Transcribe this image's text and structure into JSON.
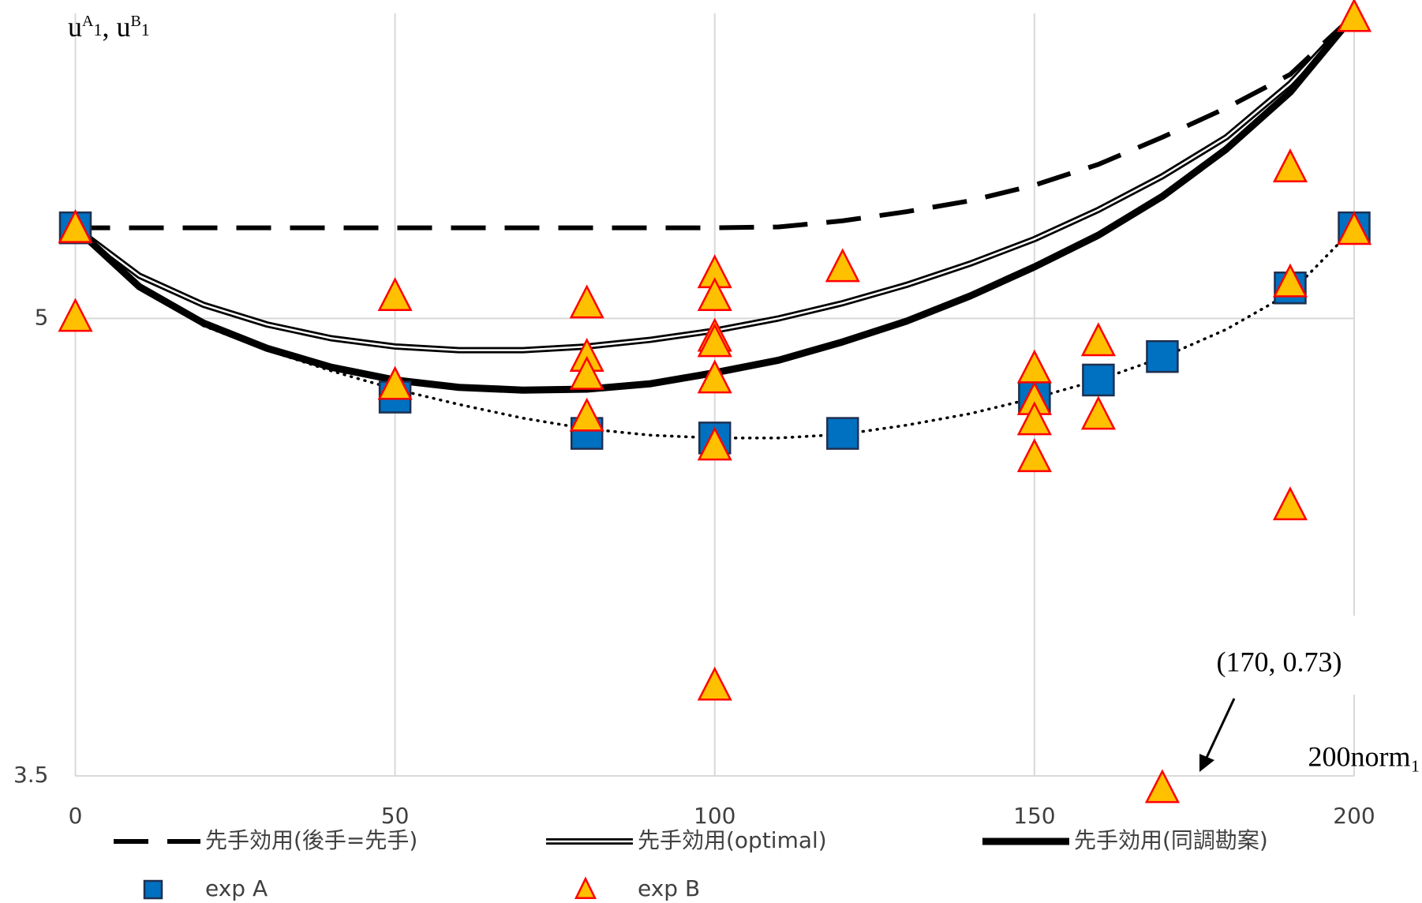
{
  "chart_data": {
    "type": "line",
    "y_label": [
      "u",
      "A",
      "1",
      ",  u",
      "B",
      "1"
    ],
    "x_label": "200norm₁",
    "annotation": "(170, 0.73)",
    "xlim": [
      0,
      200
    ],
    "xticks": [
      0,
      50,
      100,
      150,
      200
    ],
    "ylim": [
      3.5,
      6
    ],
    "yticks": [
      3.5,
      5
    ],
    "grid": true,
    "series": [
      {
        "name": "先手効用(後手=先手)",
        "style": "dashed",
        "color": "#000000",
        "x": [
          0,
          10,
          20,
          30,
          40,
          50,
          60,
          70,
          80,
          90,
          100,
          110,
          120,
          130,
          140,
          150,
          160,
          170,
          180,
          190,
          200
        ],
        "values": [
          5.297,
          5.297,
          5.297,
          5.297,
          5.297,
          5.297,
          5.297,
          5.297,
          5.297,
          5.297,
          5.297,
          5.3,
          5.32,
          5.35,
          5.386,
          5.437,
          5.505,
          5.594,
          5.69,
          5.8,
          5.995
        ]
      },
      {
        "name": "先手効用(optimal)",
        "style": "double",
        "color": "#000000",
        "x": [
          0,
          10,
          20,
          30,
          40,
          50,
          60,
          70,
          80,
          90,
          100,
          110,
          120,
          130,
          140,
          150,
          160,
          170,
          180,
          190,
          200
        ],
        "values": [
          5.297,
          5.14,
          5.045,
          4.98,
          4.935,
          4.908,
          4.896,
          4.896,
          4.908,
          4.93,
          4.96,
          5.0,
          5.05,
          5.11,
          5.18,
          5.26,
          5.356,
          5.466,
          5.594,
          5.77,
          5.995
        ]
      },
      {
        "name": "先手効用(同調勘案)",
        "style": "thick",
        "color": "#000000",
        "x": [
          0,
          10,
          20,
          30,
          40,
          50,
          60,
          70,
          80,
          90,
          100,
          110,
          120,
          130,
          140,
          150,
          160,
          170,
          180,
          190,
          200
        ],
        "values": [
          5.297,
          5.104,
          4.985,
          4.902,
          4.84,
          4.798,
          4.774,
          4.765,
          4.768,
          4.786,
          4.822,
          4.863,
          4.923,
          4.991,
          5.074,
          5.169,
          5.273,
          5.4,
          5.555,
          5.742,
          5.995
        ]
      },
      {
        "name": "exp A",
        "style": "square",
        "color": "#0070c0",
        "x": [
          0,
          50,
          80,
          100,
          120,
          150,
          160,
          170,
          190,
          200
        ],
        "values": [
          5.297,
          4.742,
          4.623,
          4.608,
          4.623,
          4.742,
          4.798,
          4.875,
          5.1,
          5.297
        ]
      },
      {
        "name": "exp B",
        "style": "triangle",
        "color": "#ffc000",
        "x": [
          0,
          0,
          50,
          50,
          80,
          80,
          80,
          80,
          100,
          100,
          100,
          100,
          100,
          100,
          100,
          120,
          150,
          150,
          150,
          150,
          160,
          160,
          170,
          190,
          190,
          190,
          200,
          200
        ],
        "values": [
          5.297,
          5.006,
          5.074,
          4.783,
          5.05,
          4.875,
          4.816,
          4.679,
          5.149,
          5.074,
          4.941,
          4.923,
          4.804,
          4.584,
          3.797,
          5.169,
          4.837,
          4.733,
          4.667,
          4.546,
          4.926,
          4.685,
          3.461,
          5.496,
          5.119,
          4.388,
          5.989,
          5.291
        ]
      },
      {
        "style": "dotted",
        "color": "#000000",
        "x": [
          20,
          30,
          40,
          50,
          60,
          70,
          80,
          90,
          100,
          110,
          120,
          130,
          140,
          150,
          160,
          170,
          180,
          190,
          200
        ],
        "values": [
          4.976,
          4.896,
          4.828,
          4.768,
          4.718,
          4.673,
          4.638,
          4.617,
          4.608,
          4.608,
          4.62,
          4.65,
          4.688,
          4.739,
          4.798,
          4.872,
          4.964,
          5.083,
          5.297
        ]
      }
    ]
  }
}
